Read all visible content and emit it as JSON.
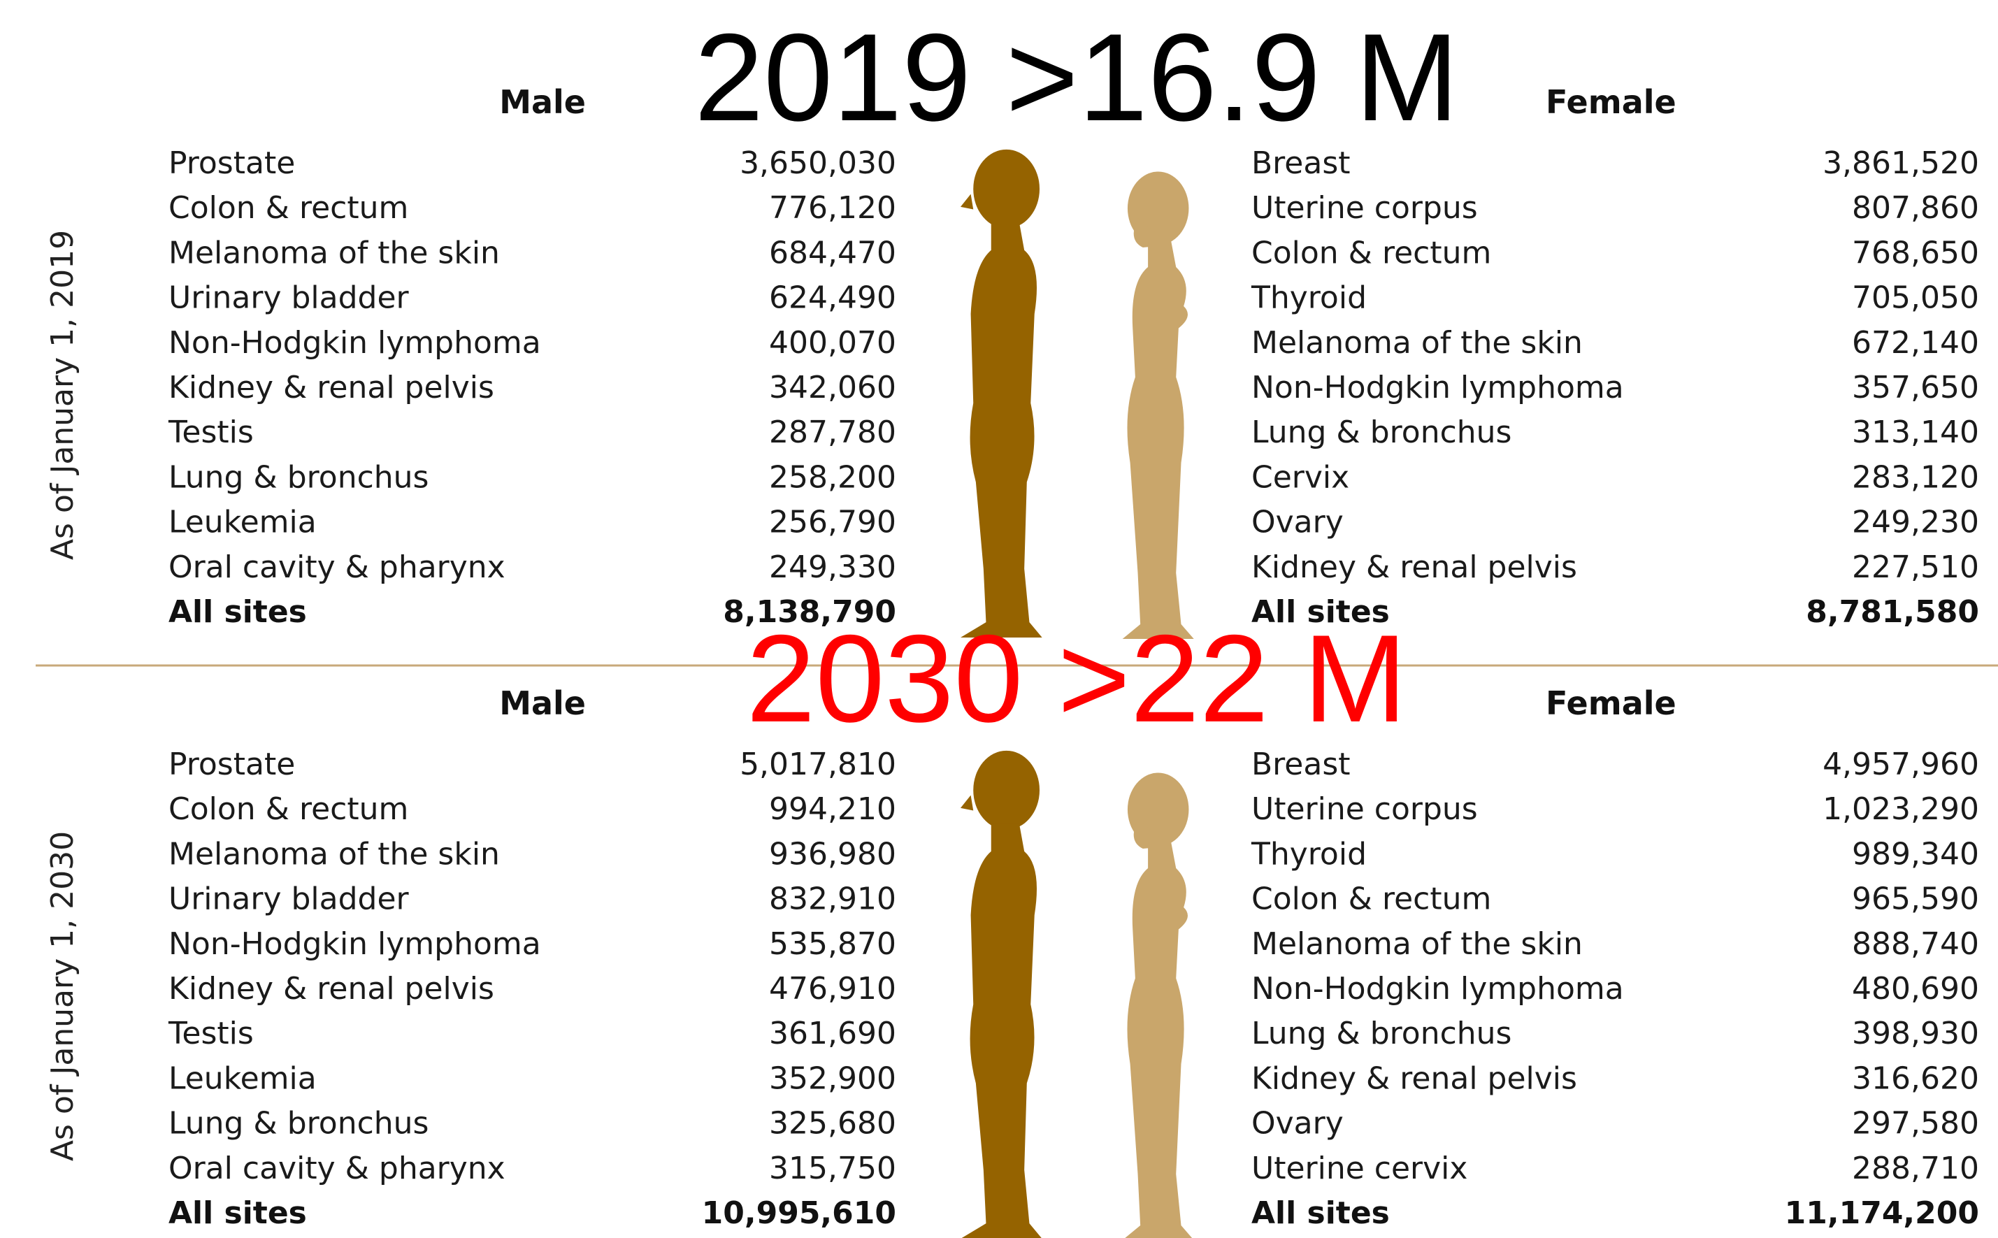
{
  "sections": [
    {
      "heading": "2019 >16.9 M",
      "side_label": "As of January 1, 2019",
      "male": {
        "title": "Male",
        "rows": [
          [
            "Prostate",
            "3,650,030"
          ],
          [
            "Colon & rectum",
            "776,120"
          ],
          [
            "Melanoma of the skin",
            "684,470"
          ],
          [
            "Urinary bladder",
            "624,490"
          ],
          [
            "Non-Hodgkin lymphoma",
            "400,070"
          ],
          [
            "Kidney & renal pelvis",
            "342,060"
          ],
          [
            "Testis",
            "287,780"
          ],
          [
            "Lung & bronchus",
            "258,200"
          ],
          [
            "Leukemia",
            "256,790"
          ],
          [
            "Oral cavity & pharynx",
            "249,330"
          ]
        ],
        "total": [
          "All sites",
          "8,138,790"
        ]
      },
      "female": {
        "title": "Female",
        "rows": [
          [
            "Breast",
            "3,861,520"
          ],
          [
            "Uterine corpus",
            "807,860"
          ],
          [
            "Colon & rectum",
            "768,650"
          ],
          [
            "Thyroid",
            "705,050"
          ],
          [
            "Melanoma of the skin",
            "672,140"
          ],
          [
            "Non-Hodgkin lymphoma",
            "357,650"
          ],
          [
            "Lung & bronchus",
            "313,140"
          ],
          [
            "Cervix",
            "283,120"
          ],
          [
            "Ovary",
            "249,230"
          ],
          [
            "Kidney & renal pelvis",
            "227,510"
          ]
        ],
        "total": [
          "All sites",
          "8,781,580"
        ]
      }
    },
    {
      "heading": "2030 >22 M",
      "side_label": "As of January 1, 2030",
      "male": {
        "title": "Male",
        "rows": [
          [
            "Prostate",
            "5,017,810"
          ],
          [
            "Colon & rectum",
            "994,210"
          ],
          [
            "Melanoma of the skin",
            "936,980"
          ],
          [
            "Urinary bladder",
            "832,910"
          ],
          [
            "Non-Hodgkin lymphoma",
            "535,870"
          ],
          [
            "Kidney & renal pelvis",
            "476,910"
          ],
          [
            "Testis",
            "361,690"
          ],
          [
            "Leukemia",
            "352,900"
          ],
          [
            "Lung & bronchus",
            "325,680"
          ],
          [
            "Oral cavity & pharynx",
            "315,750"
          ]
        ],
        "total": [
          "All sites",
          "10,995,610"
        ]
      },
      "female": {
        "title": "Female",
        "rows": [
          [
            "Breast",
            "4,957,960"
          ],
          [
            "Uterine corpus",
            "1,023,290"
          ],
          [
            "Thyroid",
            "989,340"
          ],
          [
            "Colon & rectum",
            "965,590"
          ],
          [
            "Melanoma of the skin",
            "888,740"
          ],
          [
            "Non-Hodgkin lymphoma",
            "480,690"
          ],
          [
            "Lung & bronchus",
            "398,930"
          ],
          [
            "Kidney & renal pelvis",
            "316,620"
          ],
          [
            "Ovary",
            "297,580"
          ],
          [
            "Uterine cervix",
            "288,710"
          ]
        ],
        "total": [
          "All sites",
          "11,174,200"
        ]
      }
    }
  ]
}
